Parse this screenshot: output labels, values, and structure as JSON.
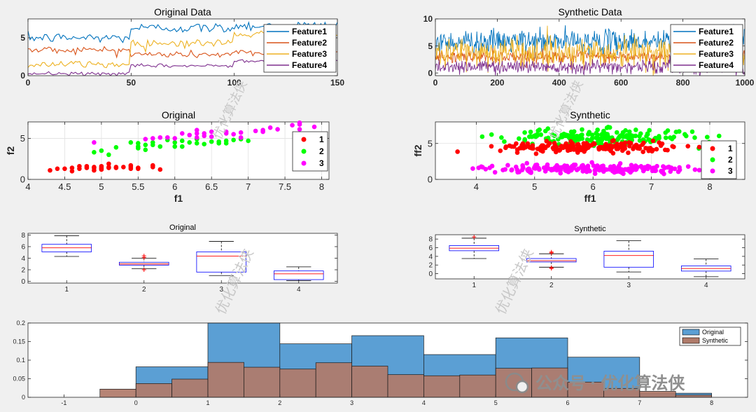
{
  "colors": {
    "feature1": "#0072bd",
    "feature2": "#d95319",
    "feature3": "#edb120",
    "feature4": "#7e2f8e",
    "class1": "#ff0000",
    "class2": "#00ff00",
    "class3": "#ff00ff",
    "hist_original": "#5b9fd4",
    "hist_synthetic": "#b07b6a",
    "box_edge": "#0000ff",
    "box_median": "#ff0000",
    "outlier": "#ff0000"
  },
  "watermark": {
    "text_diag": "优化算法侠",
    "badge": "公众号 · 优化算法侠"
  },
  "chart_data": [
    {
      "id": "orig-line",
      "type": "line",
      "title": "Original Data",
      "xlim": [
        0,
        150
      ],
      "ylim": [
        0,
        7.5
      ],
      "xticks": [
        0,
        50,
        100,
        150
      ],
      "yticks": [
        0,
        5
      ],
      "xticklabels": [
        "0",
        "50",
        "100",
        "150"
      ],
      "yticklabels": [
        "0",
        "5"
      ],
      "legend": [
        "Feature1",
        "Feature2",
        "Feature3",
        "Feature4"
      ],
      "legend_position": "top-right",
      "series": [
        {
          "name": "Feature1",
          "mean_first": 5.0,
          "mean_second": 6.3,
          "mean_third": 6.6,
          "spread": 0.55
        },
        {
          "name": "Feature2",
          "mean_first": 3.4,
          "mean_second": 2.8,
          "mean_third": 3.0,
          "spread": 0.4
        },
        {
          "name": "Feature3",
          "mean_first": 1.5,
          "mean_second": 4.3,
          "mean_third": 5.5,
          "spread": 0.45
        },
        {
          "name": "Feature4",
          "mean_first": 0.25,
          "mean_second": 1.3,
          "mean_third": 2.0,
          "spread": 0.2
        }
      ],
      "segments": [
        50,
        100
      ]
    },
    {
      "id": "synth-line",
      "type": "line",
      "title": "Synthetic Data",
      "xlim": [
        0,
        1000
      ],
      "ylim": [
        -0.5,
        10
      ],
      "xticks": [
        0,
        200,
        400,
        600,
        800,
        1000
      ],
      "yticks": [
        0,
        5,
        10
      ],
      "xticklabels": [
        "0",
        "200",
        "400",
        "600",
        "800",
        "1000"
      ],
      "yticklabels": [
        "0",
        "5",
        "10"
      ],
      "legend": [
        "Feature1",
        "Feature2",
        "Feature3",
        "Feature4"
      ],
      "legend_position": "top-right",
      "series": [
        {
          "name": "Feature1",
          "mean": 5.8,
          "spread": 1.2
        },
        {
          "name": "Feature2",
          "mean": 3.0,
          "spread": 0.6
        },
        {
          "name": "Feature3",
          "mean": 3.8,
          "spread": 1.6
        },
        {
          "name": "Feature4",
          "mean": 1.2,
          "spread": 0.7
        }
      ]
    },
    {
      "id": "orig-scatter",
      "type": "scatter",
      "title": "Original",
      "xlabel": "f1",
      "ylabel": "f2",
      "xlim": [
        4,
        8.1
      ],
      "ylim": [
        0,
        7
      ],
      "xticks": [
        4,
        4.5,
        5,
        5.5,
        6,
        6.5,
        7,
        7.5,
        8
      ],
      "xticklabels": [
        "4",
        "4.5",
        "5",
        "5.5",
        "6",
        "6.5",
        "7",
        "7.5",
        "8"
      ],
      "yticks": [
        0,
        5
      ],
      "yticklabels": [
        "0",
        "5"
      ],
      "grid": true,
      "legend": [
        "1",
        "2",
        "3"
      ],
      "legend_position": "right",
      "series": [
        {
          "name": "1",
          "points": [
            [
              4.3,
              1.1
            ],
            [
              4.4,
              1.3
            ],
            [
              4.5,
              1.3
            ],
            [
              4.6,
              1.0
            ],
            [
              4.6,
              1.4
            ],
            [
              4.7,
              1.3
            ],
            [
              4.8,
              1.4
            ],
            [
              4.8,
              1.6
            ],
            [
              4.9,
              1.5
            ],
            [
              4.9,
              1.1
            ],
            [
              5.0,
              1.2
            ],
            [
              5.0,
              1.4
            ],
            [
              5.0,
              1.6
            ],
            [
              5.1,
              1.4
            ],
            [
              5.1,
              1.5
            ],
            [
              5.1,
              1.9
            ],
            [
              5.2,
              1.5
            ],
            [
              5.2,
              1.4
            ],
            [
              5.3,
              1.5
            ],
            [
              5.4,
              1.3
            ],
            [
              5.4,
              1.5
            ],
            [
              5.4,
              1.7
            ],
            [
              5.5,
              1.4
            ],
            [
              5.5,
              1.3
            ],
            [
              5.7,
              1.5
            ],
            [
              5.7,
              1.7
            ],
            [
              5.8,
              1.2
            ],
            [
              4.7,
              1.6
            ],
            [
              4.9,
              1.4
            ],
            [
              5.0,
              1.3
            ]
          ]
        },
        {
          "name": "2",
          "points": [
            [
              4.9,
              3.3
            ],
            [
              5.0,
              3.5
            ],
            [
              5.1,
              3.0
            ],
            [
              5.2,
              3.9
            ],
            [
              5.4,
              4.5
            ],
            [
              5.5,
              4.0
            ],
            [
              5.5,
              3.8
            ],
            [
              5.6,
              4.2
            ],
            [
              5.6,
              3.6
            ],
            [
              5.7,
              4.5
            ],
            [
              5.7,
              4.2
            ],
            [
              5.8,
              4.0
            ],
            [
              5.9,
              4.8
            ],
            [
              6.0,
              4.5
            ],
            [
              6.0,
              4.0
            ],
            [
              6.1,
              4.7
            ],
            [
              6.1,
              4.0
            ],
            [
              6.2,
              4.5
            ],
            [
              6.3,
              4.9
            ],
            [
              6.3,
              4.4
            ],
            [
              6.4,
              4.3
            ],
            [
              6.5,
              4.6
            ],
            [
              6.6,
              4.6
            ],
            [
              6.6,
              4.4
            ],
            [
              6.7,
              4.7
            ],
            [
              6.7,
              4.4
            ],
            [
              6.8,
              4.8
            ],
            [
              6.9,
              4.9
            ],
            [
              7.0,
              4.7
            ],
            [
              5.5,
              4.4
            ]
          ]
        },
        {
          "name": "3",
          "points": [
            [
              4.9,
              4.5
            ],
            [
              5.6,
              4.9
            ],
            [
              5.7,
              5.0
            ],
            [
              5.8,
              5.1
            ],
            [
              5.9,
              5.1
            ],
            [
              6.0,
              5.0
            ],
            [
              6.1,
              5.6
            ],
            [
              6.2,
              5.4
            ],
            [
              6.3,
              5.6
            ],
            [
              6.3,
              6.0
            ],
            [
              6.4,
              5.3
            ],
            [
              6.4,
              5.6
            ],
            [
              6.5,
              5.8
            ],
            [
              6.5,
              5.2
            ],
            [
              6.7,
              5.6
            ],
            [
              6.7,
              5.8
            ],
            [
              6.8,
              5.5
            ],
            [
              6.9,
              5.7
            ],
            [
              6.9,
              5.1
            ],
            [
              7.1,
              5.9
            ],
            [
              7.2,
              6.0
            ],
            [
              7.2,
              5.8
            ],
            [
              7.3,
              6.3
            ],
            [
              7.4,
              6.1
            ],
            [
              7.6,
              6.6
            ],
            [
              7.7,
              6.7
            ],
            [
              7.7,
              6.9
            ],
            [
              7.7,
              6.1
            ],
            [
              7.9,
              6.4
            ],
            [
              6.3,
              5.1
            ]
          ]
        }
      ]
    },
    {
      "id": "synth-scatter",
      "type": "scatter",
      "title": "Synthetic",
      "xlabel": "ff1",
      "ylabel": "ff2",
      "xlim": [
        3.3,
        8.6
      ],
      "ylim": [
        0,
        8
      ],
      "xticks": [
        4,
        5,
        6,
        7,
        8
      ],
      "xticklabels": [
        "4",
        "5",
        "6",
        "7",
        "8"
      ],
      "yticks": [
        0,
        5
      ],
      "yticklabels": [
        "0",
        "5"
      ],
      "grid": true,
      "legend": [
        "1",
        "2",
        "3"
      ],
      "legend_position": "right",
      "series": [
        {
          "name": "1",
          "cx": 5.9,
          "cy": 4.5,
          "sx": 1.0,
          "sy": 0.35,
          "n": 180
        },
        {
          "name": "2",
          "cx": 6.1,
          "cy": 5.9,
          "sx": 1.1,
          "sy": 0.55,
          "n": 180
        },
        {
          "name": "3",
          "cx": 5.9,
          "cy": 1.5,
          "sx": 1.2,
          "sy": 0.3,
          "n": 200
        }
      ]
    },
    {
      "id": "orig-box",
      "type": "box",
      "title": "Original",
      "ylim": [
        -0.3,
        8.3
      ],
      "yticks": [
        0,
        2,
        4,
        6,
        8
      ],
      "yticklabels": [
        "0",
        "2",
        "4",
        "6",
        "8"
      ],
      "categories": [
        "1",
        "2",
        "3",
        "4"
      ],
      "boxes": [
        {
          "min": 4.3,
          "q1": 5.1,
          "median": 5.8,
          "q3": 6.4,
          "max": 7.9,
          "outliers": []
        },
        {
          "min": 2.2,
          "q1": 2.8,
          "median": 3.0,
          "q3": 3.3,
          "max": 4.0,
          "outliers": [
            4.4,
            4.1,
            2.0
          ]
        },
        {
          "min": 1.0,
          "q1": 1.6,
          "median": 4.35,
          "q3": 5.1,
          "max": 6.9,
          "outliers": []
        },
        {
          "min": 0.1,
          "q1": 0.3,
          "median": 1.3,
          "q3": 1.8,
          "max": 2.5,
          "outliers": []
        }
      ]
    },
    {
      "id": "synth-box",
      "type": "box",
      "title": "Synthetic",
      "ylim": [
        -1.2,
        9
      ],
      "yticks": [
        0,
        2,
        4,
        6,
        8
      ],
      "yticklabels": [
        "0",
        "2",
        "4",
        "6",
        "8"
      ],
      "categories": [
        "1",
        "2",
        "3",
        "4"
      ],
      "boxes": [
        {
          "min": 3.5,
          "q1": 5.3,
          "median": 5.9,
          "q3": 6.5,
          "max": 8.2,
          "outliers": [
            8.5
          ]
        },
        {
          "min": 1.5,
          "q1": 2.7,
          "median": 3.0,
          "q3": 3.5,
          "max": 4.6,
          "outliers": [
            5.0,
            4.8,
            1.4,
            1.2
          ]
        },
        {
          "min": 0.4,
          "q1": 1.5,
          "median": 4.2,
          "q3": 5.2,
          "max": 7.6,
          "outliers": []
        },
        {
          "min": -0.7,
          "q1": 0.6,
          "median": 1.2,
          "q3": 1.8,
          "max": 3.4,
          "outliers": []
        }
      ]
    },
    {
      "id": "hist",
      "type": "bar",
      "xlim": [
        -1.5,
        8.5
      ],
      "ylim": [
        0,
        0.2
      ],
      "xticks": [
        -1,
        0,
        1,
        2,
        3,
        4,
        5,
        6,
        7,
        8
      ],
      "xticklabels": [
        "-1",
        "0",
        "1",
        "2",
        "3",
        "4",
        "5",
        "6",
        "7",
        "8"
      ],
      "yticks": [
        0,
        0.05,
        0.1,
        0.15,
        0.2
      ],
      "yticklabels": [
        "0",
        "0.05",
        "0.1",
        "0.15",
        "0.2"
      ],
      "legend": [
        "Original",
        "Synthetic"
      ],
      "legend_position": "top-right",
      "series": [
        {
          "name": "Original",
          "edges": [
            0,
            1,
            2,
            3,
            4,
            5,
            6,
            7,
            8
          ],
          "values": [
            0.082,
            0.2,
            0.144,
            0.166,
            0.115,
            0.16,
            0.108,
            0.011
          ]
        },
        {
          "name": "Synthetic",
          "edges": [
            -0.5,
            0,
            0.5,
            1,
            1.5,
            2,
            2.5,
            3,
            3.5,
            4,
            4.5,
            5,
            5.5,
            6,
            6.5,
            7,
            7.5,
            8
          ],
          "values": [
            0.022,
            0.037,
            0.049,
            0.094,
            0.081,
            0.076,
            0.093,
            0.084,
            0.061,
            0.058,
            0.06,
            0.078,
            0.079,
            0.041,
            0.024,
            0.016,
            0.006
          ]
        }
      ]
    }
  ]
}
